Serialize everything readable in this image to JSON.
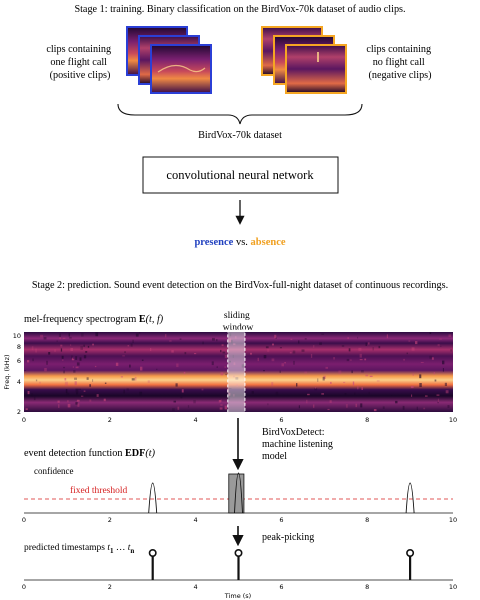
{
  "stage1": {
    "heading": "Stage 1: training. Binary classification on the BirdVox-70k dataset of audio clips.",
    "positive_label": [
      "clips containing",
      "one flight call",
      "(positive clips)"
    ],
    "negative_label": [
      "clips containing",
      "no flight call",
      "(negative clips)"
    ],
    "dataset_label": "BirdVox-70k dataset",
    "network_label": "convolutional neural network",
    "presence": "presence",
    "vs": " vs. ",
    "absence": "absence"
  },
  "stage2": {
    "heading": "Stage 2: prediction. Sound event detection on the BirdVox-full-night dataset of continuous recordings.",
    "spectrogram_title": "mel-frequency spectrogram",
    "spectrogram_symbol": "E",
    "spectrogram_args": "(t, f)",
    "sliding_window": [
      "sliding",
      "window"
    ],
    "freq_axis_label": "Freq. (kHz)",
    "freq_ticks": [
      "10",
      "8",
      "6",
      "4",
      "2"
    ],
    "time_ticks": [
      "0",
      "2",
      "4",
      "6",
      "8",
      "10"
    ],
    "detector_label": [
      "BirdVoxDetect:",
      "machine listening",
      "model"
    ],
    "edf_title": "event detection function",
    "edf_symbol": "EDF",
    "edf_args": "(t)",
    "confidence_label": "confidence",
    "threshold_label": "fixed threshold",
    "peak_picking_label": "peak-picking",
    "timestamps_label": "predicted timestamps",
    "t1": "t",
    "t1_sub": "1",
    "ellipsis": " … ",
    "tn": "t",
    "tn_sub": "n",
    "time_axis_label": "Time (s)"
  },
  "chart_data": {
    "type": "line",
    "x_range": [
      0,
      10
    ],
    "edf_peaks_s": [
      3.0,
      5.0,
      9.0
    ],
    "edf_peak_values": [
      0.75,
      1.0,
      0.75
    ],
    "threshold": 0.35,
    "predicted_timestamps_s": [
      3.0,
      5.0,
      9.0
    ],
    "sliding_window_s": [
      4.75,
      5.15
    ]
  },
  "colors": {
    "presence": "#1f3fbf",
    "absence": "#f0a020",
    "threshold": "#d62020",
    "positive_frame": "#2b3fd6",
    "negative_frame": "#f5a623"
  }
}
